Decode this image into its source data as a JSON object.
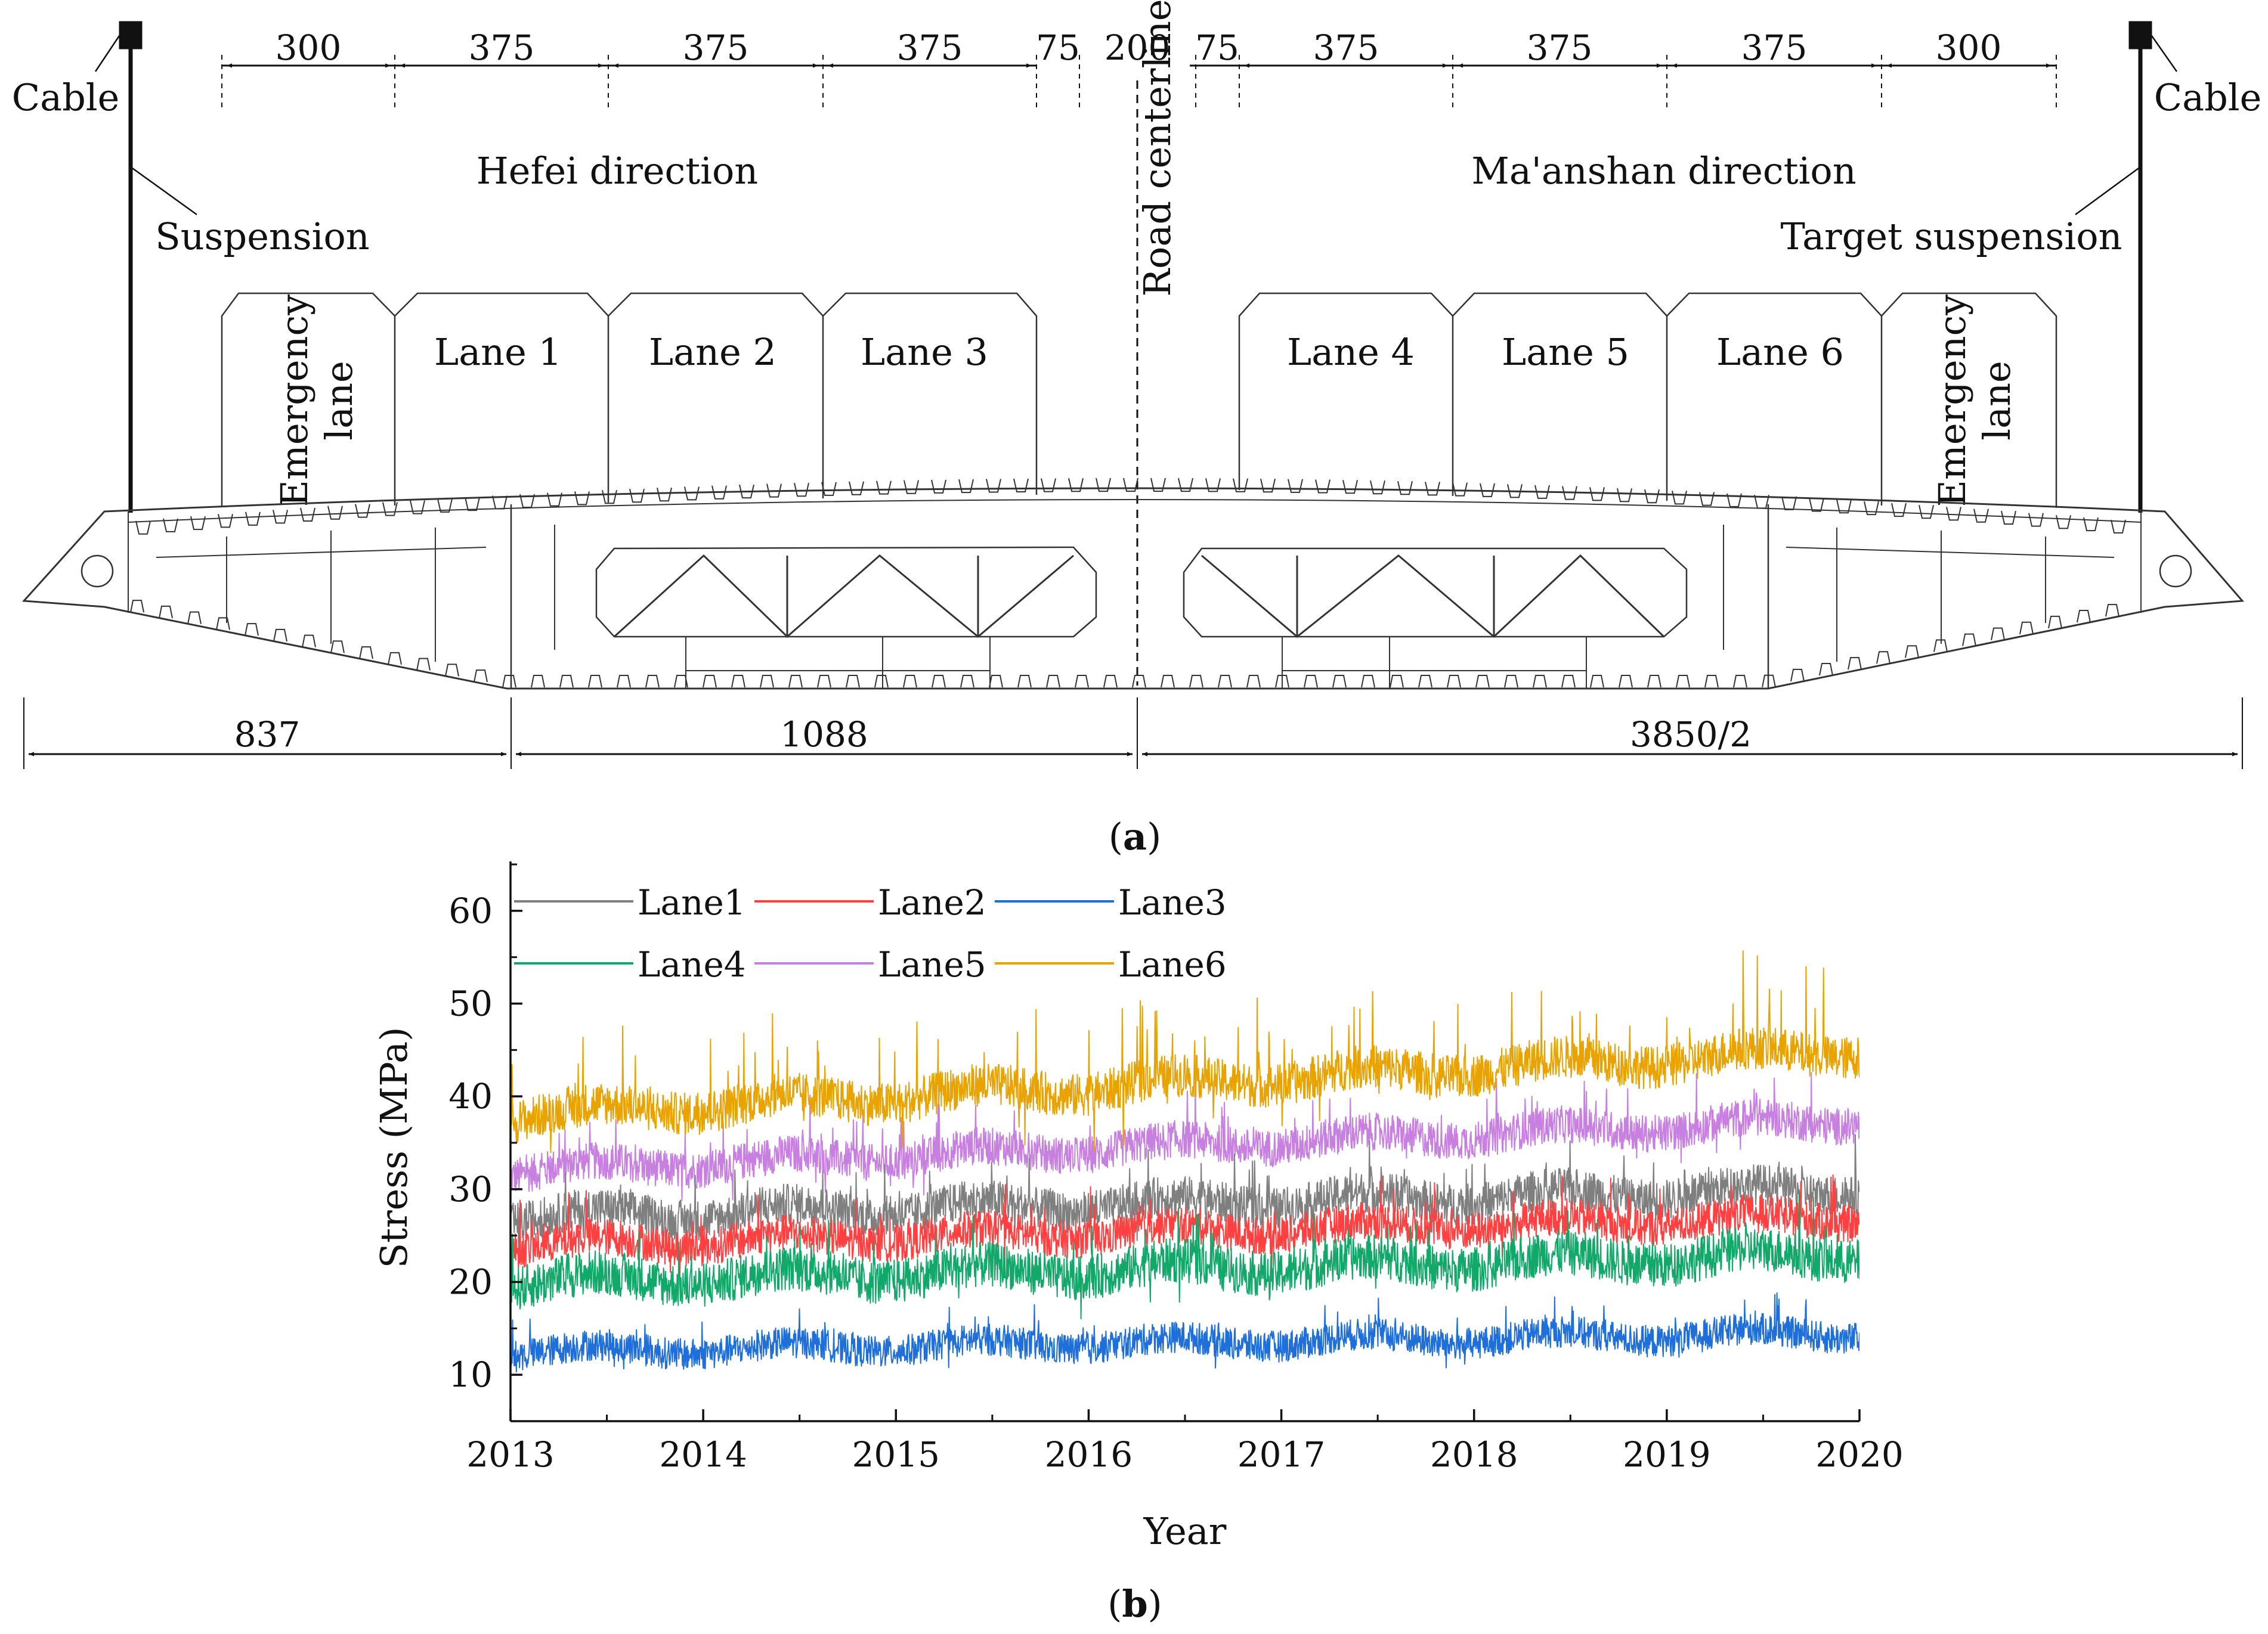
{
  "panel_a": {
    "top_dims": [
      "300",
      "375",
      "375",
      "375",
      "75",
      "200",
      "75",
      "375",
      "375",
      "375",
      "300"
    ],
    "bottom_dims": [
      "837",
      "1088",
      "3850/2"
    ],
    "left_cable": "Cable",
    "right_cable": "Cable",
    "left_hanger": "Suspension",
    "right_hanger": "Target suspension",
    "left_direction": "Hefei direction",
    "right_direction": "Ma'anshan direction",
    "centerline": "Road centerline",
    "lanes": [
      "Lane 1",
      "Lane 2",
      "Lane 3",
      "Lane 4",
      "Lane 5",
      "Lane 6"
    ],
    "emergency_left": [
      "Emergency",
      "lane"
    ],
    "emergency_right": [
      "Emergency",
      "lane"
    ],
    "caption_letter": "a"
  },
  "panel_b_caption_letter": "b",
  "chart_data": {
    "type": "line",
    "xlabel": "Year",
    "ylabel": "Stress (MPa)",
    "xlim": [
      2013,
      2020
    ],
    "ylim": [
      5,
      65
    ],
    "xticks": [
      "2013",
      "2014",
      "2015",
      "2016",
      "2017",
      "2018",
      "2019",
      "2020"
    ],
    "yticks": [
      "10",
      "20",
      "30",
      "40",
      "50",
      "60"
    ],
    "legend_position": "top-left",
    "series": [
      {
        "name": "Lane1",
        "color": "#7f7f7f",
        "mean_start": 27,
        "mean_end": 30,
        "noise": 2.2,
        "spike": 5
      },
      {
        "name": "Lane2",
        "color": "#ff4040",
        "mean_start": 24,
        "mean_end": 27,
        "noise": 2.0,
        "spike": 4
      },
      {
        "name": "Lane3",
        "color": "#1e6fd9",
        "mean_start": 12.5,
        "mean_end": 14.5,
        "noise": 1.7,
        "spike": 3
      },
      {
        "name": "Lane4",
        "color": "#11a86a",
        "mean_start": 20,
        "mean_end": 23,
        "noise": 2.4,
        "spike": 5
      },
      {
        "name": "Lane5",
        "color": "#c77fe0",
        "mean_start": 32,
        "mean_end": 37.5,
        "noise": 2.0,
        "spike": 5
      },
      {
        "name": "Lane6",
        "color": "#e8a300",
        "mean_start": 38,
        "mean_end": 45,
        "noise": 2.3,
        "spike": 9
      }
    ]
  }
}
